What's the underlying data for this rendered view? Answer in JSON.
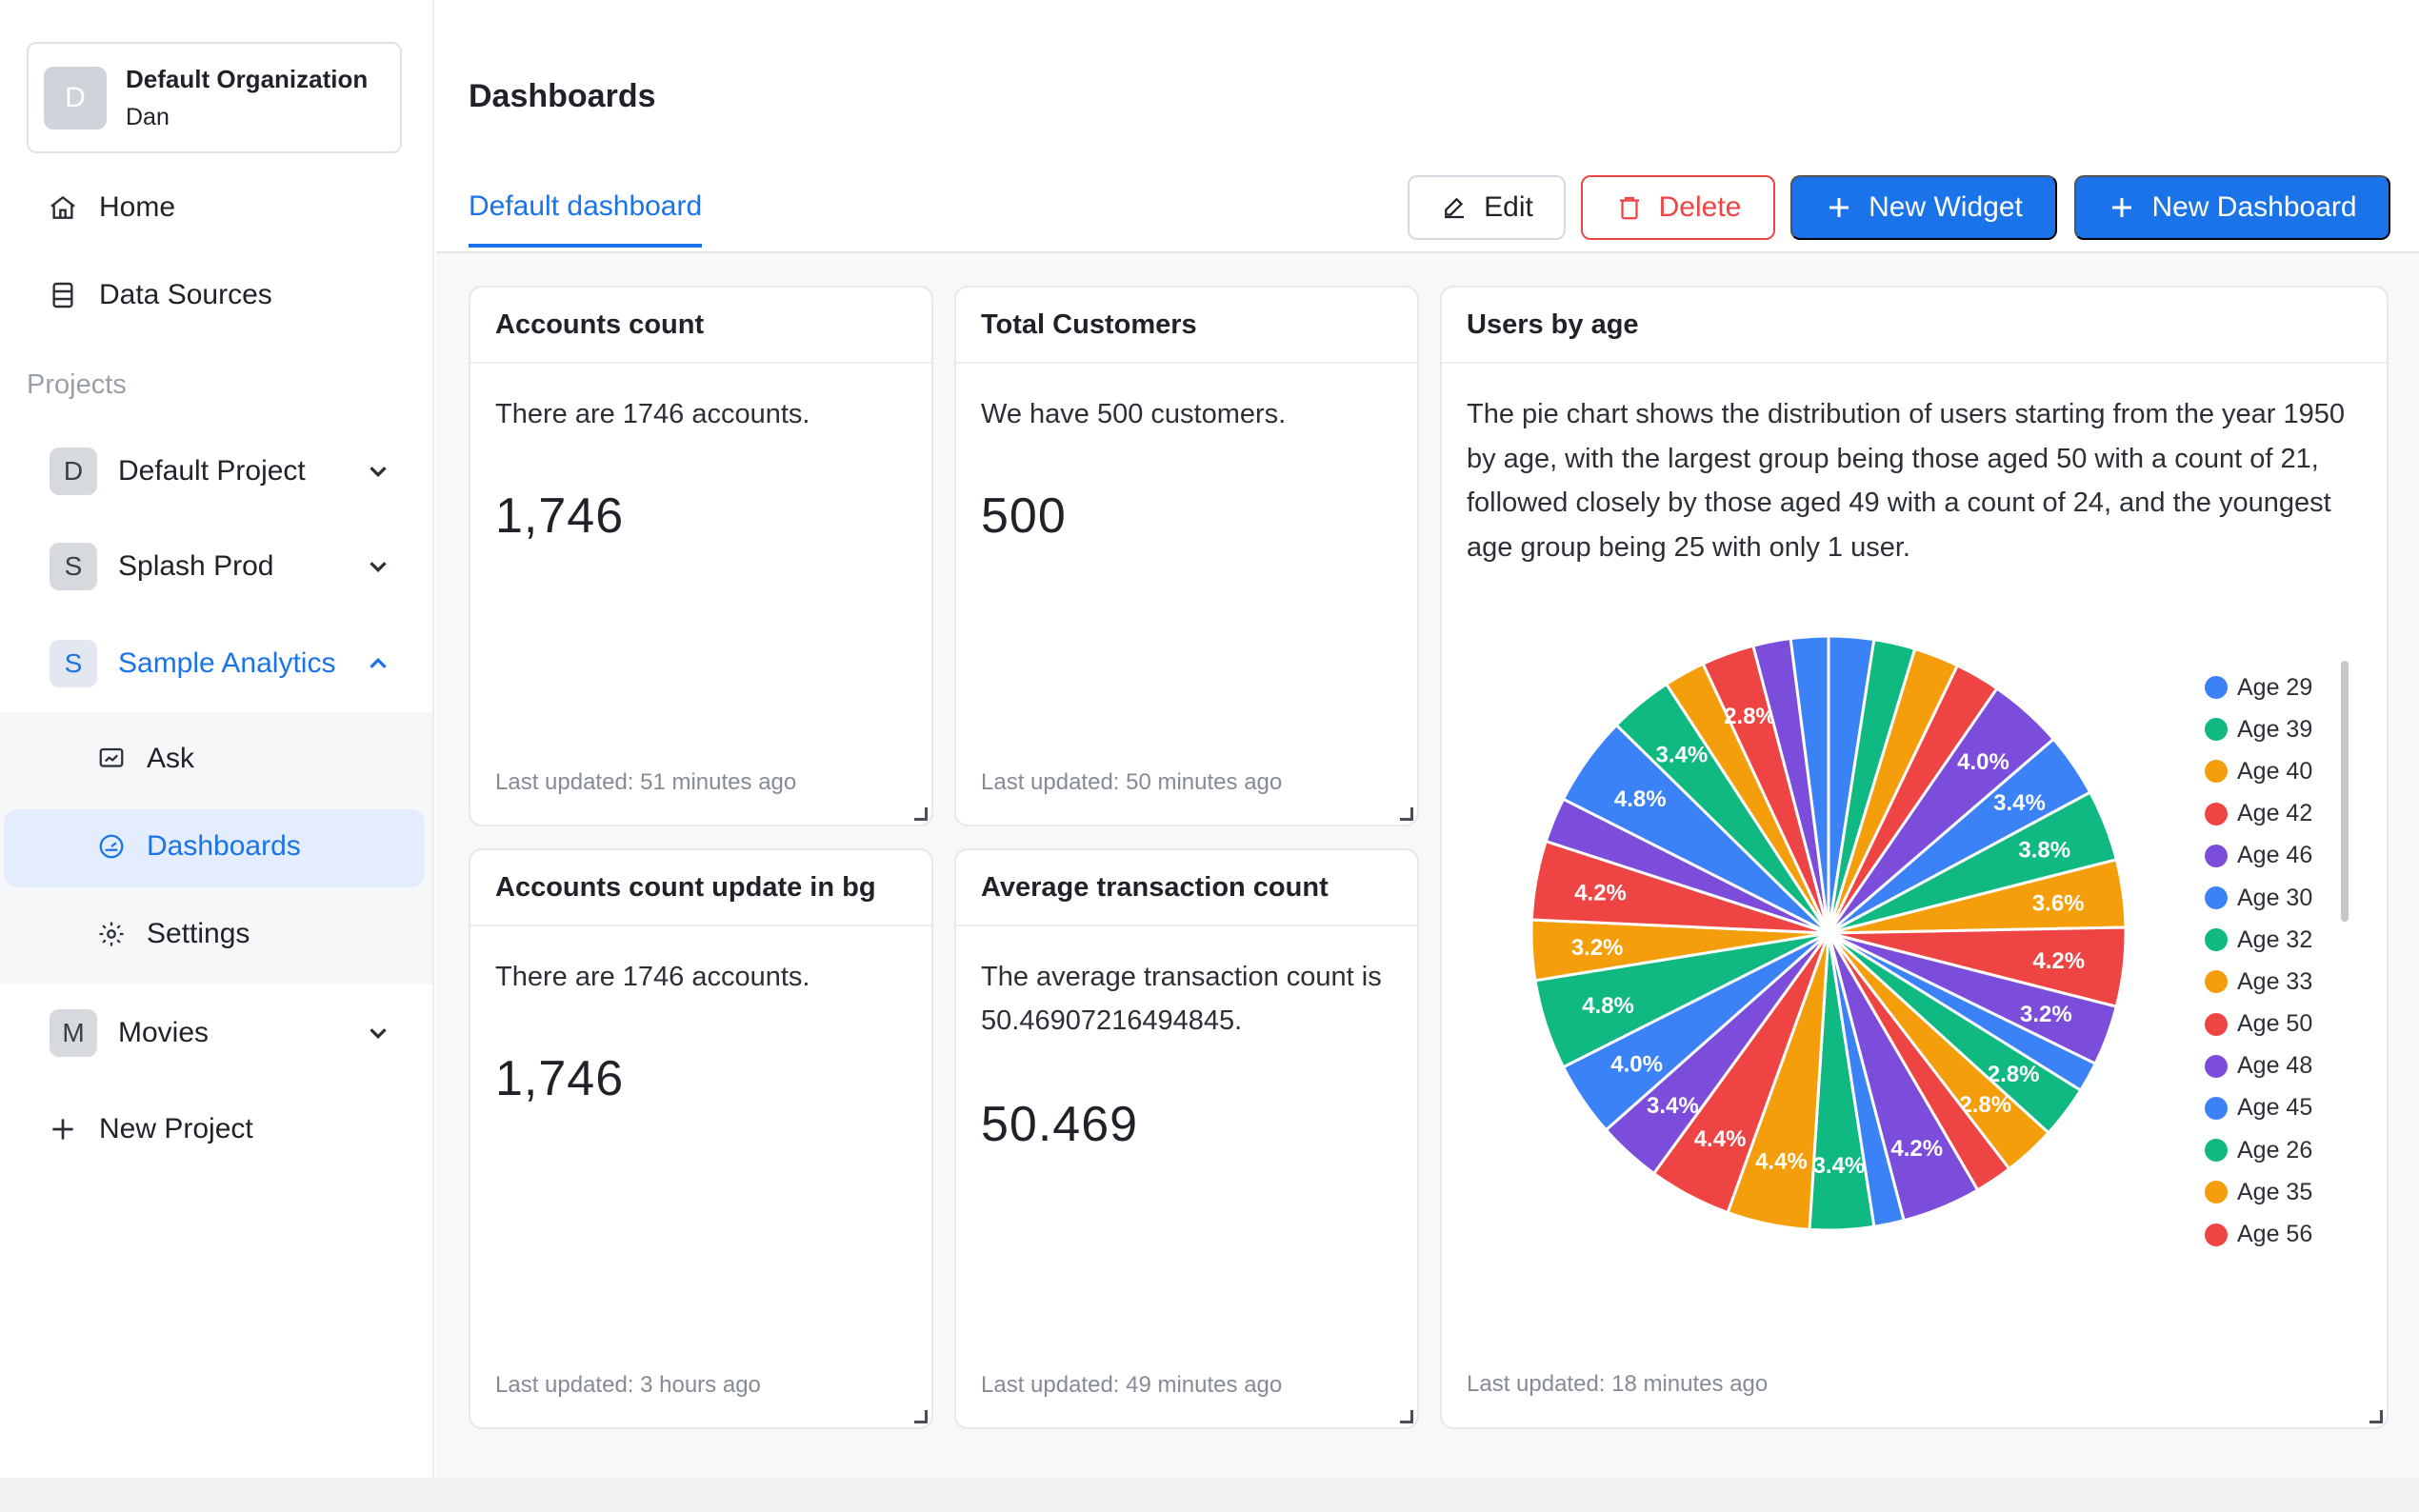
{
  "organization": {
    "initial": "D",
    "name": "Default Organization",
    "user": "Dan"
  },
  "nav": {
    "home": "Home",
    "data_sources": "Data Sources"
  },
  "projects_label": "Projects",
  "projects": [
    {
      "initial": "D",
      "name": "Default Project",
      "expanded": false
    },
    {
      "initial": "S",
      "name": "Splash Prod",
      "expanded": false
    },
    {
      "initial": "S",
      "name": "Sample Analytics",
      "expanded": true
    },
    {
      "initial": "M",
      "name": "Movies",
      "expanded": false
    }
  ],
  "sub_nav": {
    "ask": "Ask",
    "dashboards": "Dashboards",
    "settings": "Settings"
  },
  "new_project": "New Project",
  "header": {
    "title": "Dashboards",
    "tab": "Default dashboard"
  },
  "toolbar": {
    "edit": "Edit",
    "delete": "Delete",
    "new_widget": "New Widget",
    "new_dashboard": "New Dashboard"
  },
  "widgets": {
    "accounts": {
      "title": "Accounts count",
      "description": "There are 1746 accounts.",
      "value": "1,746",
      "updated": "Last updated: 51 minutes ago"
    },
    "customers": {
      "title": "Total Customers",
      "description": "We have 500 customers.",
      "value": "500",
      "updated": "Last updated: 50 minutes ago"
    },
    "accounts_bg": {
      "title": "Accounts count update in bg",
      "description": "There are 1746 accounts.",
      "value": "1,746",
      "updated": "Last updated: 3 hours ago"
    },
    "avg_tx": {
      "title": "Average transaction count",
      "description": "The average transaction count is 50.46907216494845.",
      "value": "50.469",
      "updated": "Last updated: 49 minutes ago"
    },
    "users_by_age": {
      "title": "Users by age",
      "description": "The pie chart shows the distribution of users starting from the year 1950 by age, with the largest group being those aged 50 with a count of 21, followed closely by those aged 49 with a count of 24, and the youngest age group being 25 with only 1 user.",
      "updated": "Last updated: 18 minutes ago"
    }
  },
  "chart_data": {
    "type": "pie",
    "title": "",
    "slices": [
      {
        "label": "",
        "value": 2.4,
        "display": "",
        "color": "#3b82f6"
      },
      {
        "label": "",
        "value": 2.2,
        "display": "",
        "color": "#10b981"
      },
      {
        "label": "",
        "value": 2.4,
        "display": "",
        "color": "#f59e0b"
      },
      {
        "label": "",
        "value": 2.4,
        "display": "",
        "color": "#ef4444"
      },
      {
        "label": "",
        "value": 4.0,
        "display": "4.0%",
        "color": "#7c4ddb"
      },
      {
        "label": "",
        "value": 3.4,
        "display": "3.4%",
        "color": "#3b82f6"
      },
      {
        "label": "",
        "value": 3.8,
        "display": "3.8%",
        "color": "#10b981"
      },
      {
        "label": "",
        "value": 3.6,
        "display": "3.6%",
        "color": "#f59e0b"
      },
      {
        "label": "",
        "value": 4.2,
        "display": "4.2%",
        "color": "#ef4444"
      },
      {
        "label": "",
        "value": 3.2,
        "display": "3.2%",
        "color": "#7c4ddb"
      },
      {
        "label": "",
        "value": 1.6,
        "display": "",
        "color": "#3b82f6"
      },
      {
        "label": "",
        "value": 2.8,
        "display": "2.8%",
        "color": "#10b981"
      },
      {
        "label": "",
        "value": 2.8,
        "display": "2.8%",
        "color": "#f59e0b"
      },
      {
        "label": "",
        "value": 2.0,
        "display": "",
        "color": "#ef4444"
      },
      {
        "label": "",
        "value": 4.2,
        "display": "4.2%",
        "color": "#7c4ddb"
      },
      {
        "label": "",
        "value": 1.6,
        "display": "",
        "color": "#3b82f6"
      },
      {
        "label": "",
        "value": 3.4,
        "display": "3.4%",
        "color": "#10b981"
      },
      {
        "label": "",
        "value": 4.4,
        "display": "4.4%",
        "color": "#f59e0b"
      },
      {
        "label": "",
        "value": 4.4,
        "display": "4.4%",
        "color": "#ef4444"
      },
      {
        "label": "",
        "value": 3.4,
        "display": "3.4%",
        "color": "#7c4ddb"
      },
      {
        "label": "",
        "value": 4.0,
        "display": "4.0%",
        "color": "#3b82f6"
      },
      {
        "label": "",
        "value": 4.8,
        "display": "4.8%",
        "color": "#10b981"
      },
      {
        "label": "",
        "value": 3.2,
        "display": "3.2%",
        "color": "#f59e0b"
      },
      {
        "label": "",
        "value": 4.2,
        "display": "4.2%",
        "color": "#ef4444"
      },
      {
        "label": "",
        "value": 2.4,
        "display": "",
        "color": "#7c4ddb"
      },
      {
        "label": "",
        "value": 4.8,
        "display": "4.8%",
        "color": "#3b82f6"
      },
      {
        "label": "",
        "value": 3.4,
        "display": "3.4%",
        "color": "#10b981"
      },
      {
        "label": "",
        "value": 2.2,
        "display": "",
        "color": "#f59e0b"
      },
      {
        "label": "",
        "value": 2.8,
        "display": "2.8%",
        "color": "#ef4444"
      },
      {
        "label": "",
        "value": 2.0,
        "display": "",
        "color": "#7c4ddb"
      },
      {
        "label": "",
        "value": 2.0,
        "display": "",
        "color": "#3b82f6"
      }
    ],
    "legend": [
      {
        "label": "Age 29",
        "color": "#3b82f6"
      },
      {
        "label": "Age 39",
        "color": "#10b981"
      },
      {
        "label": "Age 40",
        "color": "#f59e0b"
      },
      {
        "label": "Age 42",
        "color": "#ef4444"
      },
      {
        "label": "Age 46",
        "color": "#7c4ddb"
      },
      {
        "label": "Age 30",
        "color": "#3b82f6"
      },
      {
        "label": "Age 32",
        "color": "#10b981"
      },
      {
        "label": "Age 33",
        "color": "#f59e0b"
      },
      {
        "label": "Age 50",
        "color": "#ef4444"
      },
      {
        "label": "Age 48",
        "color": "#7c4ddb"
      },
      {
        "label": "Age 45",
        "color": "#3b82f6"
      },
      {
        "label": "Age 26",
        "color": "#10b981"
      },
      {
        "label": "Age 35",
        "color": "#f59e0b"
      },
      {
        "label": "Age 56",
        "color": "#ef4444"
      }
    ],
    "legend_position": "right"
  },
  "colors": {
    "accent": "#1a73e8",
    "danger": "#ef4444"
  }
}
